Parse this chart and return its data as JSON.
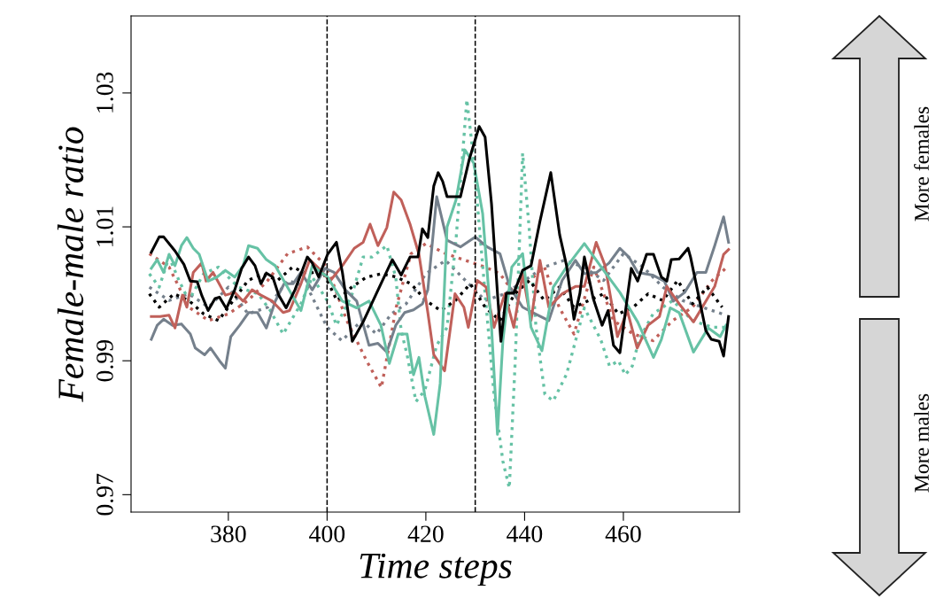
{
  "chart_data": {
    "type": "line",
    "xlabel": "Time steps",
    "ylabel": "Female-male ratio",
    "xlim": [
      360.3,
      483.5
    ],
    "xticks": [
      380,
      400,
      420,
      440,
      460
    ],
    "ylim": [
      0.9674,
      1.0415
    ],
    "yticks": [
      0.97,
      0.99,
      1.01,
      1.03
    ],
    "grid": false,
    "legend": false,
    "marker": "none",
    "ref_lines": [
      {
        "axis": "x",
        "value": 400,
        "color": "#000000",
        "line_style": "dashed"
      },
      {
        "axis": "x",
        "value": 430,
        "color": "#000000",
        "line_style": "dashed"
      }
    ],
    "annotations": [
      "More females",
      "More males"
    ],
    "series": [
      {
        "color": "#75808c",
        "line_style": "dotted",
        "x": [
          364,
          368,
          372,
          376,
          380,
          384,
          388,
          392,
          396,
          400,
          403,
          407,
          410,
          413,
          416,
          420,
          424,
          428,
          432,
          436,
          440,
          444,
          448,
          452,
          456,
          460,
          464,
          468,
          472,
          476,
          480
        ],
        "values": [
          1.001,
          0.999,
          1.0,
          0.998,
          1.001,
          0.997,
          0.998,
          1.002,
          1.001,
          0.995,
          0.993,
          0.996,
          0.994,
          0.997,
          0.9985,
          1.003,
          1.005,
          1.002,
          0.999,
          1.0,
          1.002,
          1.004,
          1.005,
          1.004,
          1.002,
          1.006,
          1.004,
          1.001,
          0.999,
          0.998,
          0.997
        ]
      },
      {
        "color": "#c0605a",
        "line_style": "dotted",
        "x": [
          364,
          368,
          372,
          376,
          380,
          384,
          388,
          392,
          396,
          400,
          404,
          408,
          411,
          414,
          417,
          420,
          424,
          428,
          432,
          435,
          438,
          441,
          444,
          447,
          450,
          454,
          458,
          462,
          466,
          470,
          474,
          478,
          481
        ],
        "values": [
          1.006,
          1.004,
          0.998,
          0.996,
          0.997,
          0.999,
          1.002,
          1.006,
          1.007,
          1.004,
          0.996,
          0.99,
          0.986,
          0.998,
          1.006,
          1.0075,
          1.006,
          1.005,
          1.004,
          1.003,
          1.0,
          1.002,
          1.004,
          0.998,
          0.994,
          1.004,
          0.996,
          0.994,
          0.993,
          0.996,
          0.998,
          1.002,
          1.004
        ]
      },
      {
        "color": "#66c2a5",
        "line_style": "dotted",
        "x": [
          364,
          366,
          368,
          370,
          372,
          375,
          378,
          382,
          386,
          388.5,
          391.1,
          394.7,
          397,
          400.1,
          401.9,
          405,
          407.3,
          409.1,
          412.1,
          413.9,
          415,
          416.2,
          418,
          419.8,
          422.2,
          424.3,
          426.1,
          428.3,
          429.7,
          430.6,
          432,
          433.8,
          435.6,
          436.9,
          438.1,
          439.6,
          440.9,
          442.3,
          444.1,
          445.8,
          448.5,
          452.1,
          455.4,
          457.2,
          459,
          460.4,
          461.8,
          463.2,
          466,
          470,
          474,
          478,
          481
        ],
        "values": [
          1.003,
          1.001,
          1.0055,
          1.002,
          0.999,
          1.003,
          1.004,
          1.001,
          1.0,
          0.9975,
          0.994,
          0.9985,
          1.0025,
          0.9989,
          0.9953,
          0.9998,
          1.0055,
          1.0055,
          1.0072,
          1.0025,
          0.9945,
          0.9909,
          0.9839,
          0.9856,
          0.9923,
          0.995,
          1.008,
          1.029,
          1.02,
          1.012,
          1.0,
          0.985,
          0.975,
          0.971,
          0.99,
          1.021,
          1.01,
          0.995,
          0.985,
          0.984,
          0.988,
          0.9979,
          0.9932,
          0.9892,
          0.99,
          0.9879,
          0.9892,
          0.9932,
          0.997,
          0.999,
          0.996,
          0.995,
          0.995
        ]
      },
      {
        "color": "#000000",
        "line_style": "dotted",
        "x": [
          364,
          366,
          369,
          372,
          375,
          378,
          381,
          384,
          387,
          390,
          393,
          396,
          399,
          402,
          405,
          408,
          411,
          414,
          417,
          420,
          423,
          426,
          429,
          432,
          435,
          438,
          441,
          444,
          447,
          450,
          453,
          456,
          459,
          462,
          465,
          468,
          471,
          474,
          477,
          480
        ],
        "values": [
          1.0,
          0.998,
          1.0,
          0.999,
          0.997,
          0.996,
          0.999,
          1.002,
          1.003,
          1.002,
          1.004,
          1.003,
          1.0035,
          0.999,
          1.001,
          1.0025,
          1.003,
          1.0025,
          1.0015,
          0.999,
          0.9975,
          0.999,
          1.0015,
          0.998,
          0.996,
          1.0,
          1.002,
          0.999,
          1.001,
          0.998,
          0.999,
          1.0,
          0.997,
          0.998,
          1.0,
          0.999,
          1.002,
          0.9985,
          1.001,
          0.998
        ]
      },
      {
        "color": "#75808c",
        "line_style": "solid",
        "x": [
          364.4,
          365.6,
          366.9,
          368.7,
          370.5,
          372.3,
          373.3,
          375.2,
          376.4,
          378.2,
          379.4,
          380.5,
          382.3,
          384.1,
          385.9,
          387.7,
          389.5,
          391.3,
          393.1,
          394.7,
          397,
          399.6,
          401.4,
          403.7,
          406,
          408.5,
          410.3,
          412.1,
          413.9,
          415.7,
          417.5,
          419.3,
          420.4,
          422.2,
          424.3,
          427,
          430,
          432.4,
          435,
          437,
          439.6,
          442.2,
          444.9,
          447.6,
          450.3,
          452.1,
          454.6,
          457.1,
          459.3,
          461.1,
          462.9,
          465.9,
          468.3,
          470.1,
          472.4,
          474.9,
          476.7,
          478.5,
          480.3,
          481.3
        ],
        "values": [
          0.9932,
          0.9953,
          0.9962,
          0.9953,
          0.9955,
          0.994,
          0.9919,
          0.9909,
          0.9919,
          0.99,
          0.9889,
          0.9936,
          0.9953,
          0.9972,
          0.9972,
          0.9949,
          0.9989,
          1.0015,
          1.0015,
          1.0032,
          1.0006,
          1.0038,
          1.0032,
          1.0006,
          0.9989,
          0.9923,
          0.9926,
          0.9913,
          0.9953,
          0.9972,
          0.9976,
          0.9985,
          1.0006,
          1.0145,
          1.008,
          1.007,
          1.0085,
          1.007,
          1.006,
          1.001,
          0.998,
          0.997,
          0.996,
          1.002,
          1.005,
          1.003,
          1.0032,
          1.0046,
          1.0068,
          1.0055,
          1.0032,
          1.0028,
          1.0019,
          0.9989,
          1.0002,
          1.0032,
          1.0032,
          1.0072,
          1.0115,
          1.0077
        ]
      },
      {
        "color": "#c0605a",
        "line_style": "solid",
        "x": [
          364.4,
          366.2,
          368,
          369.2,
          370.7,
          371.6,
          372.9,
          374.6,
          375.5,
          376.9,
          379.4,
          381.3,
          383,
          384.8,
          386.6,
          388.9,
          391.1,
          392.4,
          394.7,
          396.5,
          398.3,
          400.6,
          403.1,
          405.5,
          407.3,
          408.7,
          410.3,
          412.1,
          413.5,
          415,
          416.8,
          418.6,
          420.4,
          421.6,
          423.8,
          425.9,
          427.7,
          428.6,
          430.4,
          432.2,
          433.8,
          436,
          437.8,
          439.6,
          441.3,
          443.1,
          444.9,
          447.6,
          450.3,
          452.1,
          454.5,
          456.3,
          458.8,
          460.8,
          462.8,
          465,
          467.3,
          468.8,
          471.3,
          474.2,
          476.7,
          478.5,
          480.3,
          481.3
        ],
        "values": [
          0.9966,
          0.9966,
          0.9968,
          0.9949,
          0.9998,
          0.998,
          1.0032,
          1.0046,
          1.0019,
          1.0032,
          0.9998,
          1.0002,
          0.9989,
          1.0006,
          0.9998,
          0.9989,
          0.9972,
          0.9975,
          1.0015,
          1.0051,
          1.0038,
          1.0019,
          1.0042,
          1.0068,
          1.0077,
          1.0104,
          1.0072,
          1.0099,
          1.0152,
          1.014,
          1.0104,
          1.0059,
          0.9972,
          0.9909,
          0.9885,
          1.0,
          0.998,
          0.995,
          1.002,
          1.001,
          0.995,
          1.0,
          0.995,
          1.003,
          0.996,
          1.005,
          0.998,
          1.0,
          1.0011,
          1.0011,
          1.0077,
          1.0042,
          0.9936,
          0.9975,
          0.9919,
          0.9953,
          0.9966,
          1.0011,
          0.9985,
          0.9958,
          0.9989,
          1.0011,
          1.0059,
          1.0066
        ]
      },
      {
        "color": "#66c2a5",
        "line_style": "solid",
        "x": [
          364.4,
          365.6,
          366.9,
          368,
          369.2,
          370.5,
          371.6,
          372.9,
          374.1,
          375.9,
          377.7,
          379.4,
          381.3,
          383,
          384.1,
          385.9,
          387.7,
          389.5,
          394.7,
          397,
          400.1,
          403.1,
          406,
          408.5,
          410.9,
          412.6,
          414.4,
          416.2,
          417.5,
          418.6,
          419.8,
          421.6,
          422.9,
          424.3,
          426.1,
          427.9,
          429.7,
          431.5,
          433.3,
          434.5,
          435.6,
          437.4,
          439.6,
          441.3,
          443.5,
          445.8,
          448.5,
          452.1,
          455.7,
          459.3,
          462.9,
          466.1,
          467.7,
          469.5,
          471.3,
          474.2,
          477.2,
          479.6,
          480.8
        ],
        "values": [
          1.0038,
          1.0051,
          1.0032,
          1.0059,
          1.0042,
          1.0072,
          1.0084,
          1.0068,
          1.0059,
          1.0019,
          1.0025,
          1.0035,
          1.0025,
          1.0042,
          1.0072,
          1.0068,
          1.0051,
          1.0042,
          0.9975,
          1.0042,
          1.0025,
          0.9989,
          0.9979,
          0.9989,
          0.9953,
          0.9896,
          0.994,
          0.994,
          0.9879,
          0.9905,
          0.9847,
          0.979,
          0.9866,
          1.01,
          1.014,
          1.0215,
          1.0195,
          1.012,
          0.995,
          0.979,
          0.993,
          1.004,
          1.006,
          0.995,
          0.9915,
          1.001,
          1.004,
          1.0075,
          1.0038,
          1.0002,
          0.9958,
          0.9905,
          0.9932,
          0.9979,
          0.9972,
          0.9913,
          0.9949,
          0.9936,
          0.9953
        ]
      },
      {
        "color": "#000000",
        "line_style": "solid",
        "x": [
          364.4,
          366,
          366.9,
          369.2,
          371,
          372.3,
          373.7,
          374.6,
          375.9,
          377.3,
          378.2,
          379.6,
          381.3,
          382.7,
          384.1,
          385.4,
          386.6,
          387.7,
          389,
          390.2,
          391.7,
          393.5,
          396,
          397,
          398.3,
          400.1,
          401.9,
          403.1,
          405.1,
          407.3,
          410.9,
          413.2,
          415,
          416.8,
          418.4,
          419.3,
          420.4,
          421.6,
          422.5,
          423.4,
          424.3,
          427,
          428.8,
          430.8,
          432,
          433.3,
          434.5,
          435.2,
          436.3,
          437.8,
          439.6,
          441.3,
          443.1,
          445.3,
          447.1,
          448.5,
          450,
          451.2,
          452.1,
          453.9,
          455.7,
          456.9,
          458,
          459.3,
          461.1,
          461.6,
          462.9,
          464.7,
          466.1,
          467.7,
          468.8,
          469.7,
          471.3,
          473.1,
          473.6,
          475.1,
          476.7,
          477.8,
          479.4,
          480.3,
          481.3
        ],
        "values": [
          1.0062,
          1.0085,
          1.0085,
          1.0064,
          1.0044,
          1.0019,
          1.0018,
          0.9998,
          0.9975,
          0.9993,
          0.9995,
          0.9978,
          1.0006,
          1.0038,
          1.0055,
          1.0042,
          1.0015,
          1.0031,
          1.0025,
          0.9998,
          0.9979,
          1.0006,
          1.0055,
          1.0046,
          1.0025,
          1.0059,
          1.0077,
          1.0032,
          0.9929,
          0.9958,
          1.0015,
          1.0051,
          1.0028,
          1.0055,
          1.0055,
          1.0097,
          1.0084,
          1.0161,
          1.0181,
          1.0168,
          1.0145,
          1.0145,
          1.0201,
          1.025,
          1.0234,
          1.0134,
          1.0001,
          0.9929,
          1.0001,
          1.0001,
          1.0035,
          1.0042,
          1.0108,
          1.0181,
          1.0088,
          1.0042,
          0.9962,
          1.0001,
          1.0055,
          0.9993,
          0.9953,
          0.9975,
          0.9923,
          0.9912,
          1.0011,
          1.0038,
          1.0019,
          1.0059,
          1.0059,
          1.0025,
          1.0019,
          1.0051,
          1.0052,
          1.0068,
          1.0055,
          1.0002,
          0.9945,
          0.9932,
          0.9929,
          0.9907,
          0.9966
        ]
      }
    ]
  }
}
